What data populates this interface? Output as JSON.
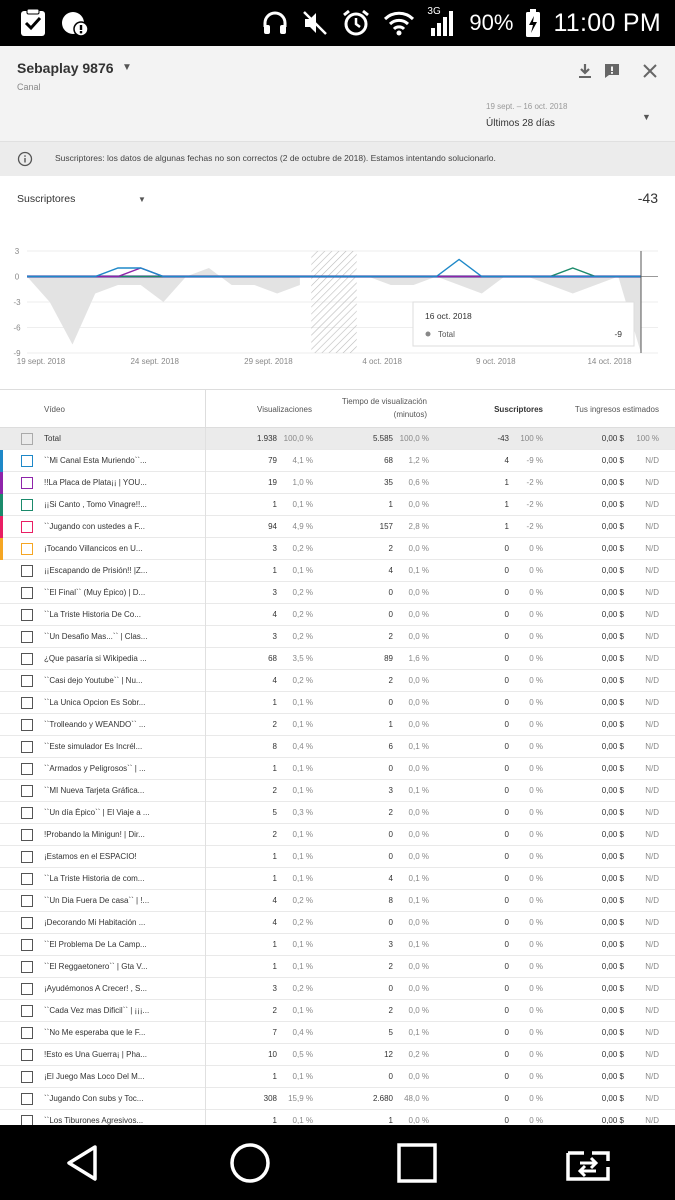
{
  "status_bar": {
    "network": "3G",
    "battery": "90%",
    "time": "11:00 PM"
  },
  "header": {
    "channel_name": "Sebaplay 9876",
    "channel_type": "Canal",
    "date_range": "19 sept. – 16 oct. 2018",
    "period": "Últimos 28 días"
  },
  "notice": {
    "text": "Suscriptores: los datos de algunas fechas no son correctos (2 de octubre de 2018). Estamos intentando solucionarlo."
  },
  "metric": {
    "label": "Suscriptores",
    "total": "-43"
  },
  "chart_data": {
    "type": "line",
    "x_labels": [
      "19 sept. 2018",
      "24 sept. 2018",
      "29 sept. 2018",
      "4 oct. 2018",
      "9 oct. 2018",
      "14 oct. 2018"
    ],
    "y_ticks": [
      "3",
      "0",
      "-3",
      "-6",
      "-9"
    ],
    "ylim": [
      -9,
      3
    ],
    "dates": [
      "19 sept.",
      "20 sept.",
      "21 sept.",
      "22 sept.",
      "23 sept.",
      "24 sept.",
      "25 sept.",
      "26 sept.",
      "27 sept.",
      "28 sept.",
      "29 sept.",
      "30 sept.",
      "1 oct.",
      "2 oct.",
      "3 oct.",
      "4 oct.",
      "5 oct.",
      "6 oct.",
      "7 oct.",
      "8 oct.",
      "9 oct.",
      "10 oct.",
      "11 oct.",
      "12 oct.",
      "13 oct.",
      "14 oct.",
      "15 oct.",
      "16 oct."
    ],
    "total_area": [
      0,
      -3,
      -8,
      -2,
      -1,
      -1,
      -3,
      0,
      1,
      -1,
      -1,
      -2,
      -1,
      null,
      null,
      0,
      -1,
      -1,
      0,
      -1,
      -2,
      0,
      0,
      -1,
      -2,
      -1,
      0,
      -9
    ],
    "series": [
      {
        "values": [
          0,
          0,
          0,
          0,
          1,
          1,
          0,
          0,
          0,
          0,
          0,
          0,
          0,
          0,
          0,
          0,
          0,
          0,
          0,
          2,
          0,
          0,
          0,
          0,
          0,
          0,
          0,
          0
        ],
        "color": "#1e88c8"
      },
      {
        "values": [
          0,
          0,
          0,
          0,
          0,
          1,
          0,
          0,
          0,
          0,
          0,
          0,
          0,
          0,
          0,
          0,
          0,
          0,
          0,
          0,
          0,
          0,
          0,
          0,
          0,
          0,
          0,
          0
        ],
        "color": "#8e24aa"
      },
      {
        "values": [
          0,
          0,
          0,
          0,
          0,
          0,
          0,
          0,
          0,
          0,
          0,
          0,
          0,
          0,
          0,
          0,
          0,
          0,
          0,
          0,
          0,
          0,
          0,
          0,
          1,
          0,
          0,
          0
        ],
        "color": "#1b8a6b"
      },
      {
        "values": [
          0,
          0,
          0,
          0,
          0,
          0,
          0,
          0,
          0,
          0,
          0,
          0,
          0,
          0,
          0,
          0,
          0,
          0,
          0,
          0,
          0,
          0,
          0,
          0,
          0,
          0,
          0,
          0
        ],
        "color": "#e91e63"
      },
      {
        "values": [
          0,
          0,
          0,
          0,
          0,
          0,
          0,
          0,
          0,
          0,
          0,
          0,
          0,
          0,
          0,
          0,
          0,
          0,
          0,
          0,
          0,
          0,
          0,
          0,
          0,
          0,
          0,
          0
        ],
        "color": "#3556c8"
      }
    ],
    "hatched_range": [
      "2 oct.",
      "3 oct."
    ],
    "tooltip": {
      "date": "16 oct. 2018",
      "label": "Total",
      "value": "-9"
    }
  },
  "table": {
    "headers": {
      "video": "Vídeo",
      "views": "Visualizaciones",
      "watch_time_1": "Tiempo de visualización",
      "watch_time_2": "(minutos)",
      "subscribers": "Suscriptores",
      "revenue": "Tus ingresos estimados"
    },
    "total": {
      "title": "Total",
      "views": "1.938",
      "views_pct": "100,0 %",
      "time": "5.585",
      "time_pct": "100,0 %",
      "subs": "-43",
      "subs_pct": "100 %",
      "rev": "0,00 $",
      "rev_pct": "100 %"
    },
    "rows": [
      {
        "title": "``Mi Canal Esta Muriendo``...",
        "views": "79",
        "views_pct": "4,1 %",
        "time": "68",
        "time_pct": "1,2 %",
        "subs": "4",
        "subs_pct": "-9 %",
        "rev": "0,00 $",
        "rev_pct": "N/D",
        "color": "#1e88c8"
      },
      {
        "title": "!!La Placa de Plata¡¡ | YOU...",
        "views": "19",
        "views_pct": "1,0 %",
        "time": "35",
        "time_pct": "0,6 %",
        "subs": "1",
        "subs_pct": "-2 %",
        "rev": "0,00 $",
        "rev_pct": "N/D",
        "color": "#8e24aa"
      },
      {
        "title": "¡¡Si Canto , Tomo Vinagre!!...",
        "views": "1",
        "views_pct": "0,1 %",
        "time": "1",
        "time_pct": "0,0 %",
        "subs": "1",
        "subs_pct": "-2 %",
        "rev": "0,00 $",
        "rev_pct": "N/D",
        "color": "#1b8a6b"
      },
      {
        "title": "``Jugando con ustedes a F...",
        "views": "94",
        "views_pct": "4,9 %",
        "time": "157",
        "time_pct": "2,8 %",
        "subs": "1",
        "subs_pct": "-2 %",
        "rev": "0,00 $",
        "rev_pct": "N/D",
        "color": "#e91e63"
      },
      {
        "title": "¡Tocando Villancicos en U...",
        "views": "3",
        "views_pct": "0,2 %",
        "time": "2",
        "time_pct": "0,0 %",
        "subs": "0",
        "subs_pct": "0 %",
        "rev": "0,00 $",
        "rev_pct": "N/D",
        "color": "#f5a623"
      },
      {
        "title": "¡¡Escapando de Prisión!! |Z...",
        "views": "1",
        "views_pct": "0,1 %",
        "time": "4",
        "time_pct": "0,1 %",
        "subs": "0",
        "subs_pct": "0 %",
        "rev": "0,00 $",
        "rev_pct": "N/D",
        "color": ""
      },
      {
        "title": "``El Final`` (Muy Épico) | D...",
        "views": "3",
        "views_pct": "0,2 %",
        "time": "0",
        "time_pct": "0,0 %",
        "subs": "0",
        "subs_pct": "0 %",
        "rev": "0,00 $",
        "rev_pct": "N/D",
        "color": ""
      },
      {
        "title": "``La Triste Historia De Co...",
        "views": "4",
        "views_pct": "0,2 %",
        "time": "0",
        "time_pct": "0,0 %",
        "subs": "0",
        "subs_pct": "0 %",
        "rev": "0,00 $",
        "rev_pct": "N/D",
        "color": ""
      },
      {
        "title": "``Un Desafio Mas...`` | Clas...",
        "views": "3",
        "views_pct": "0,2 %",
        "time": "2",
        "time_pct": "0,0 %",
        "subs": "0",
        "subs_pct": "0 %",
        "rev": "0,00 $",
        "rev_pct": "N/D",
        "color": ""
      },
      {
        "title": "¿Que pasaría si Wikipedia ...",
        "views": "68",
        "views_pct": "3,5 %",
        "time": "89",
        "time_pct": "1,6 %",
        "subs": "0",
        "subs_pct": "0 %",
        "rev": "0,00 $",
        "rev_pct": "N/D",
        "color": ""
      },
      {
        "title": "``Casi dejo Youtube`` | Nu...",
        "views": "4",
        "views_pct": "0,2 %",
        "time": "2",
        "time_pct": "0,0 %",
        "subs": "0",
        "subs_pct": "0 %",
        "rev": "0,00 $",
        "rev_pct": "N/D",
        "color": ""
      },
      {
        "title": "``La Unica Opcion Es Sobr...",
        "views": "1",
        "views_pct": "0,1 %",
        "time": "0",
        "time_pct": "0,0 %",
        "subs": "0",
        "subs_pct": "0 %",
        "rev": "0,00 $",
        "rev_pct": "N/D",
        "color": ""
      },
      {
        "title": "``Trolleando y WEANDO`` ...",
        "views": "2",
        "views_pct": "0,1 %",
        "time": "1",
        "time_pct": "0,0 %",
        "subs": "0",
        "subs_pct": "0 %",
        "rev": "0,00 $",
        "rev_pct": "N/D",
        "color": ""
      },
      {
        "title": "``Este simulador Es Incrél...",
        "views": "8",
        "views_pct": "0,4 %",
        "time": "6",
        "time_pct": "0,1 %",
        "subs": "0",
        "subs_pct": "0 %",
        "rev": "0,00 $",
        "rev_pct": "N/D",
        "color": ""
      },
      {
        "title": "``Armados y Peligrosos`` | ...",
        "views": "1",
        "views_pct": "0,1 %",
        "time": "0",
        "time_pct": "0,0 %",
        "subs": "0",
        "subs_pct": "0 %",
        "rev": "0,00 $",
        "rev_pct": "N/D",
        "color": ""
      },
      {
        "title": "``MI Nueva Tarjeta Gráfica...",
        "views": "2",
        "views_pct": "0,1 %",
        "time": "3",
        "time_pct": "0,1 %",
        "subs": "0",
        "subs_pct": "0 %",
        "rev": "0,00 $",
        "rev_pct": "N/D",
        "color": ""
      },
      {
        "title": "``Un día Épico`` | El Viaje a ...",
        "views": "5",
        "views_pct": "0,3 %",
        "time": "2",
        "time_pct": "0,0 %",
        "subs": "0",
        "subs_pct": "0 %",
        "rev": "0,00 $",
        "rev_pct": "N/D",
        "color": ""
      },
      {
        "title": "!Probando la Minigun! | Dir...",
        "views": "2",
        "views_pct": "0,1 %",
        "time": "0",
        "time_pct": "0,0 %",
        "subs": "0",
        "subs_pct": "0 %",
        "rev": "0,00 $",
        "rev_pct": "N/D",
        "color": ""
      },
      {
        "title": "¡Estamos en el ESPACIO!",
        "views": "1",
        "views_pct": "0,1 %",
        "time": "0",
        "time_pct": "0,0 %",
        "subs": "0",
        "subs_pct": "0 %",
        "rev": "0,00 $",
        "rev_pct": "N/D",
        "color": ""
      },
      {
        "title": "``La Triste Historia de com...",
        "views": "1",
        "views_pct": "0,1 %",
        "time": "4",
        "time_pct": "0,1 %",
        "subs": "0",
        "subs_pct": "0 %",
        "rev": "0,00 $",
        "rev_pct": "N/D",
        "color": ""
      },
      {
        "title": "``Un Dia Fuera De casa`` | !...",
        "views": "4",
        "views_pct": "0,2 %",
        "time": "8",
        "time_pct": "0,1 %",
        "subs": "0",
        "subs_pct": "0 %",
        "rev": "0,00 $",
        "rev_pct": "N/D",
        "color": ""
      },
      {
        "title": "¡Decorando Mi Habitación ...",
        "views": "4",
        "views_pct": "0,2 %",
        "time": "0",
        "time_pct": "0,0 %",
        "subs": "0",
        "subs_pct": "0 %",
        "rev": "0,00 $",
        "rev_pct": "N/D",
        "color": ""
      },
      {
        "title": "``El Problema De La Camp...",
        "views": "1",
        "views_pct": "0,1 %",
        "time": "3",
        "time_pct": "0,1 %",
        "subs": "0",
        "subs_pct": "0 %",
        "rev": "0,00 $",
        "rev_pct": "N/D",
        "color": ""
      },
      {
        "title": "``El Reggaetonero`` | Gta V...",
        "views": "1",
        "views_pct": "0,1 %",
        "time": "2",
        "time_pct": "0,0 %",
        "subs": "0",
        "subs_pct": "0 %",
        "rev": "0,00 $",
        "rev_pct": "N/D",
        "color": ""
      },
      {
        "title": "¡Ayudémonos A Crecer! , S...",
        "views": "3",
        "views_pct": "0,2 %",
        "time": "0",
        "time_pct": "0,0 %",
        "subs": "0",
        "subs_pct": "0 %",
        "rev": "0,00 $",
        "rev_pct": "N/D",
        "color": ""
      },
      {
        "title": "``Cada Vez mas Dificil`` | ¡¡¡...",
        "views": "2",
        "views_pct": "0,1 %",
        "time": "2",
        "time_pct": "0,0 %",
        "subs": "0",
        "subs_pct": "0 %",
        "rev": "0,00 $",
        "rev_pct": "N/D",
        "color": ""
      },
      {
        "title": "``No Me esperaba que le F...",
        "views": "7",
        "views_pct": "0,4 %",
        "time": "5",
        "time_pct": "0,1 %",
        "subs": "0",
        "subs_pct": "0 %",
        "rev": "0,00 $",
        "rev_pct": "N/D",
        "color": ""
      },
      {
        "title": "!Esto es Una Guerra¡ | Pha...",
        "views": "10",
        "views_pct": "0,5 %",
        "time": "12",
        "time_pct": "0,2 %",
        "subs": "0",
        "subs_pct": "0 %",
        "rev": "0,00 $",
        "rev_pct": "N/D",
        "color": ""
      },
      {
        "title": "¡El Juego Mas Loco Del M...",
        "views": "1",
        "views_pct": "0,1 %",
        "time": "0",
        "time_pct": "0,0 %",
        "subs": "0",
        "subs_pct": "0 %",
        "rev": "0,00 $",
        "rev_pct": "N/D",
        "color": ""
      },
      {
        "title": "``Jugando Con subs y Toc...",
        "views": "308",
        "views_pct": "15,9 %",
        "time": "2.680",
        "time_pct": "48,0 %",
        "subs": "0",
        "subs_pct": "0 %",
        "rev": "0,00 $",
        "rev_pct": "N/D",
        "color": ""
      },
      {
        "title": "``Los Tiburones Agresivos...",
        "views": "1",
        "views_pct": "0,1 %",
        "time": "1",
        "time_pct": "0,0 %",
        "subs": "0",
        "subs_pct": "0 %",
        "rev": "0,00 $",
        "rev_pct": "N/D",
        "color": ""
      }
    ]
  }
}
